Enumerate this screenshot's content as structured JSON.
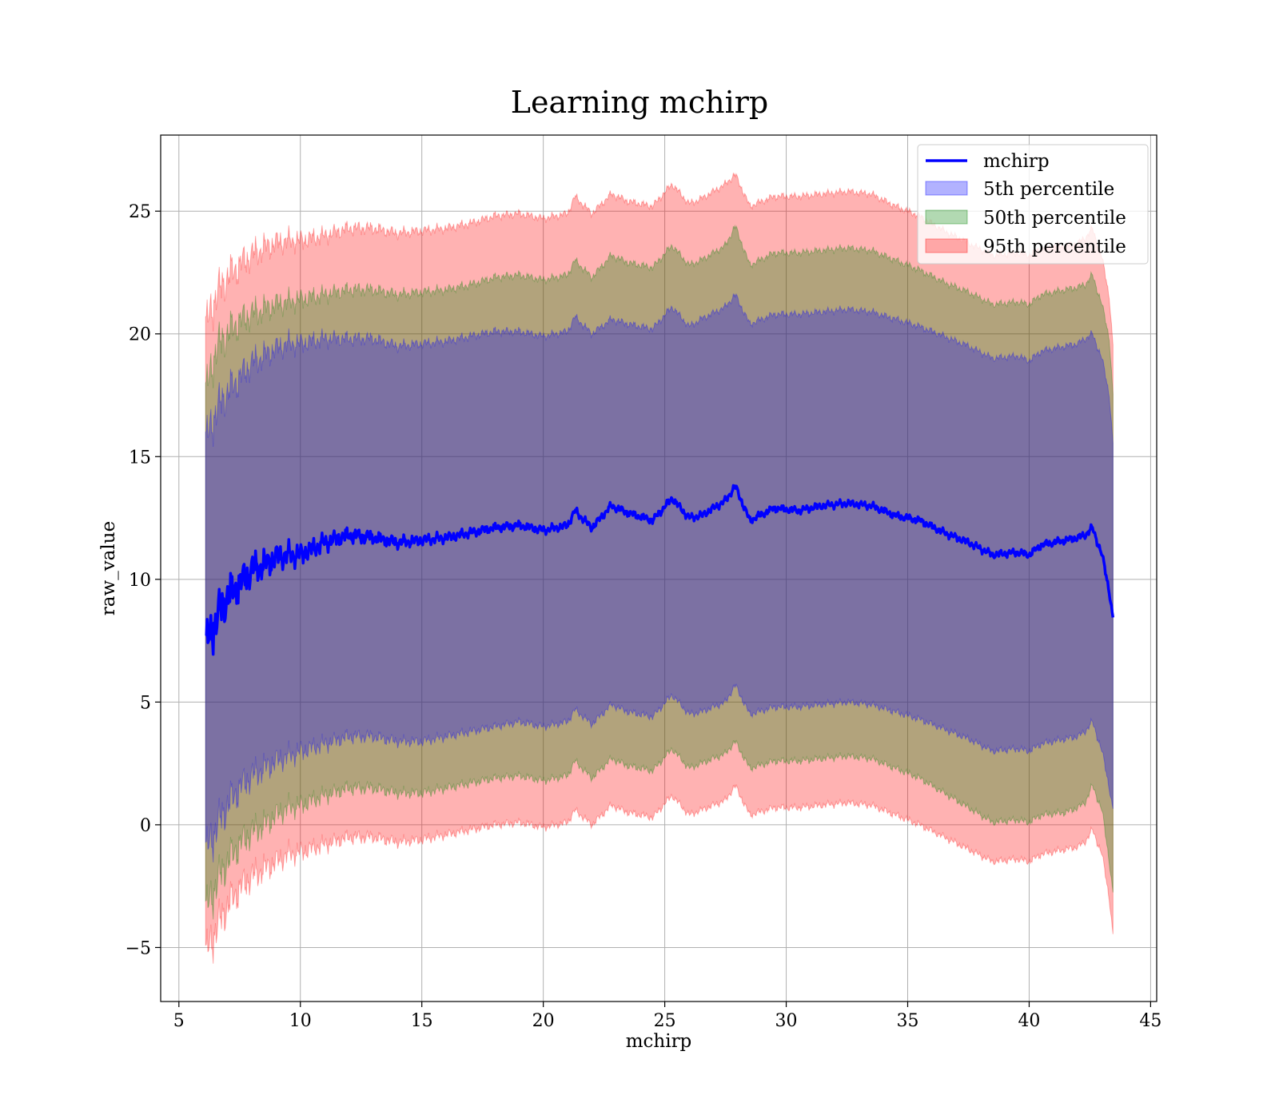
{
  "chart_data": {
    "type": "line",
    "title": "Learning mchirp",
    "xlabel": "mchirp",
    "ylabel": "raw_value",
    "xlim": [
      4.25,
      45.25
    ],
    "ylim": [
      -7.2,
      28.1
    ],
    "xticks": [
      5,
      10,
      15,
      20,
      25,
      30,
      35,
      40,
      45
    ],
    "xtick_labels": [
      "5",
      "10",
      "15",
      "20",
      "25",
      "30",
      "35",
      "40",
      "45"
    ],
    "yticks": [
      -5,
      0,
      5,
      10,
      15,
      20,
      25
    ],
    "ytick_labels": [
      "−5",
      "0",
      "5",
      "10",
      "15",
      "20",
      "25"
    ],
    "grid": true,
    "legend_position": "top-right",
    "legend": [
      "mchirp",
      "5th percentile",
      "50th percentile",
      "95th percentile"
    ],
    "colors": {
      "line": "#0000ff",
      "band_5": "#0000ff",
      "band_50": "#008000",
      "band_95": "#ff0000",
      "grid": "#b0b0b0"
    },
    "x": [
      6.1,
      6.5,
      7,
      7.5,
      8,
      8.5,
      9,
      9.5,
      10,
      11,
      12,
      13,
      14,
      15,
      16,
      17,
      18,
      19,
      20,
      21,
      21.3,
      22,
      22.8,
      23.5,
      24.5,
      25.3,
      26,
      26.5,
      27.5,
      27.9,
      28.5,
      29.5,
      30.5,
      31.5,
      32.5,
      33.5,
      34.5,
      35.5,
      36.5,
      37.5,
      38.5,
      39.5,
      40,
      40.5,
      41.5,
      42,
      42.3,
      42.6,
      43,
      43.3,
      43.45
    ],
    "series": [
      {
        "name": "mchirp",
        "values": [
          7.2,
          8.3,
          9.3,
          9.8,
          10.4,
          10.6,
          10.9,
          11.0,
          11.0,
          11.5,
          11.8,
          11.7,
          11.5,
          11.6,
          11.7,
          11.9,
          12.1,
          12.2,
          12.0,
          12.2,
          12.8,
          12.1,
          13.0,
          12.7,
          12.4,
          13.3,
          12.5,
          12.6,
          13.2,
          13.8,
          12.4,
          12.9,
          12.8,
          13.0,
          13.1,
          13.0,
          12.6,
          12.4,
          11.9,
          11.5,
          11.0,
          11.1,
          11.0,
          11.4,
          11.6,
          11.7,
          11.8,
          12.1,
          11.0,
          9.5,
          8.4
        ]
      },
      {
        "name": "5th percentile",
        "upper": [
          15.5,
          16.8,
          17.6,
          18.2,
          18.8,
          19.1,
          19.4,
          19.6,
          19.6,
          19.8,
          19.8,
          19.8,
          19.5,
          19.6,
          19.7,
          19.9,
          20.1,
          20.1,
          19.9,
          20.1,
          20.7,
          20.0,
          20.6,
          20.4,
          20.2,
          21.1,
          20.3,
          20.6,
          21.1,
          21.6,
          20.4,
          20.8,
          20.8,
          20.9,
          21.0,
          20.9,
          20.6,
          20.3,
          19.9,
          19.5,
          19.0,
          19.1,
          18.9,
          19.3,
          19.5,
          19.6,
          19.8,
          20.0,
          19.0,
          17.5,
          15.5
        ],
        "lower": [
          -1.2,
          -0.2,
          0.8,
          1.5,
          2.0,
          2.3,
          2.6,
          2.8,
          3.0,
          3.3,
          3.6,
          3.6,
          3.4,
          3.4,
          3.6,
          3.8,
          4.0,
          4.2,
          4.0,
          4.2,
          4.7,
          4.1,
          4.9,
          4.6,
          4.4,
          5.3,
          4.5,
          4.6,
          5.0,
          5.7,
          4.5,
          4.8,
          4.8,
          4.9,
          5.0,
          4.9,
          4.6,
          4.3,
          3.9,
          3.5,
          3.0,
          3.1,
          3.0,
          3.3,
          3.5,
          3.6,
          3.8,
          4.2,
          3.0,
          1.5,
          0.6
        ]
      },
      {
        "name": "50th percentile",
        "upper": [
          17.5,
          19.3,
          20.0,
          20.5,
          20.8,
          21.0,
          21.2,
          21.3,
          21.4,
          21.6,
          21.8,
          21.8,
          21.6,
          21.7,
          21.8,
          22.0,
          22.3,
          22.4,
          22.2,
          22.4,
          23.0,
          22.3,
          23.2,
          22.9,
          22.7,
          23.6,
          22.8,
          23.0,
          23.6,
          24.4,
          22.8,
          23.3,
          23.3,
          23.4,
          23.5,
          23.4,
          23.0,
          22.6,
          22.1,
          21.7,
          21.2,
          21.3,
          21.2,
          21.6,
          21.8,
          21.9,
          22.0,
          22.4,
          21.2,
          19.8,
          17.5
        ],
        "lower": [
          -3.6,
          -2.5,
          -1.5,
          -0.8,
          -0.3,
          0.0,
          0.4,
          0.7,
          0.8,
          1.2,
          1.5,
          1.5,
          1.3,
          1.3,
          1.5,
          1.7,
          1.9,
          2.0,
          1.8,
          2.0,
          2.6,
          1.9,
          2.7,
          2.4,
          2.2,
          3.1,
          2.3,
          2.5,
          2.9,
          3.4,
          2.3,
          2.6,
          2.6,
          2.7,
          2.8,
          2.7,
          2.3,
          1.9,
          1.3,
          0.7,
          0.1,
          0.2,
          0.1,
          0.4,
          0.5,
          0.7,
          0.9,
          1.6,
          0.6,
          -1.5,
          -2.8
        ]
      },
      {
        "name": "95th percentile",
        "upper": [
          20.2,
          21.5,
          22.3,
          22.8,
          23.2,
          23.5,
          23.7,
          23.8,
          23.8,
          24.0,
          24.3,
          24.3,
          24.1,
          24.2,
          24.3,
          24.5,
          24.8,
          24.9,
          24.7,
          24.9,
          25.6,
          24.9,
          25.7,
          25.4,
          25.2,
          26.1,
          25.3,
          25.5,
          26.1,
          26.5,
          25.2,
          25.6,
          25.6,
          25.7,
          25.8,
          25.7,
          25.2,
          24.8,
          24.2,
          23.7,
          23.2,
          23.3,
          23.2,
          23.5,
          23.6,
          23.7,
          23.9,
          24.3,
          23.1,
          21.5,
          19.5
        ],
        "lower": [
          -5.4,
          -4.3,
          -3.3,
          -2.6,
          -2.1,
          -1.8,
          -1.5,
          -1.2,
          -1.1,
          -0.8,
          -0.5,
          -0.5,
          -0.7,
          -0.6,
          -0.4,
          -0.2,
          0.0,
          0.1,
          -0.1,
          0.1,
          0.6,
          0.0,
          0.8,
          0.5,
          0.3,
          1.2,
          0.4,
          0.6,
          1.0,
          1.6,
          0.4,
          0.7,
          0.7,
          0.8,
          0.9,
          0.8,
          0.4,
          0.0,
          -0.5,
          -1.0,
          -1.5,
          -1.4,
          -1.5,
          -1.2,
          -1.0,
          -0.9,
          -0.7,
          -0.2,
          -1.2,
          -3.0,
          -4.5
        ]
      }
    ]
  }
}
